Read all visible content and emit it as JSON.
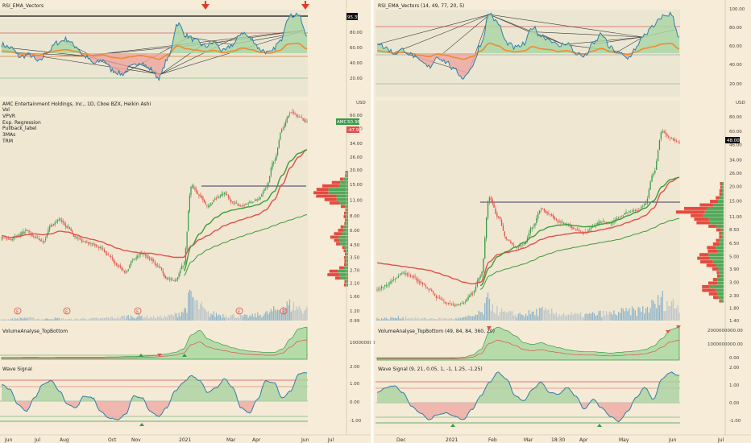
{
  "colors": {
    "background": "#f6ecd7",
    "up": "#3a9a4a",
    "down": "#e0504a",
    "rsi_line": "#2f7fa8",
    "ema_orange": "#f08a30",
    "ema_red": "#e0504a",
    "ma_green": "#3f9a3a",
    "vector_lines": "#3a3a3a",
    "vpvr_up": "#52a85a",
    "vpvr_down": "#e64a3e",
    "vwap_level": "#3a3a68",
    "wave_hi": "#e0504a",
    "wave_lo": "#3a9a4a"
  },
  "left": {
    "rsi": {
      "title": "RSI_EMA_Vectors",
      "scale_labels": [
        "20.00",
        "40.00",
        "60.00",
        "80.00"
      ],
      "value_badge": "95.35"
    },
    "main": {
      "legend": [
        "AMC Entertainment Holdings, Inc., 1D, Cboe BZX, Heikin Ashi",
        "Vol",
        "VPVR",
        "Exp. Regression",
        "Pullback_label",
        "3MAs",
        "TRM"
      ],
      "currency": "USD",
      "price_scale": [
        "0.99",
        "1.20",
        "1.60",
        "2.10",
        "2.70",
        "3.50",
        "4.50",
        "6.00",
        "8.00",
        "11.00",
        "15.00",
        "20.00",
        "26.00",
        "34.00",
        "46.00",
        "60.00",
        "80.00"
      ],
      "price_badge": "50.36",
      "price_badge_tag": "AMC",
      "pct_badge": "-47.91",
      "earnings_marker": "E"
    },
    "volume": {
      "title": "VolumeAnalyse_TopBottom",
      "scale_labels": [
        "100000000.00"
      ]
    },
    "wave": {
      "title": "Wave Signal",
      "scale_labels": [
        "2.00",
        "1.00",
        "0.00",
        "-1.00"
      ]
    },
    "time_axis": [
      "Jun",
      "Jul",
      "Aug",
      "Oct",
      "Nov",
      "2021",
      "Mar",
      "Apr",
      "Jun",
      "Jul"
    ]
  },
  "right": {
    "rsi": {
      "title": "RSI_EMA_Vectors (14, 49, 77, 20, 5)",
      "scale_labels": [
        "20.00",
        "40.00",
        "60.00",
        "80.00",
        "100.00"
      ]
    },
    "main": {
      "currency": "USD",
      "price_scale": [
        "1.40",
        "1.80",
        "2.30",
        "3.00",
        "3.90",
        "5.00",
        "6.50",
        "8.50",
        "11.00",
        "15.00",
        "20.00",
        "26.00",
        "34.00",
        "46.00",
        "60.00",
        "80.00",
        "110.00"
      ],
      "price_badge": "48.00"
    },
    "volume": {
      "title": "VolumeAnalyse_TopBottom (49, 84, 84, 360, 20)",
      "scale_labels": [
        "2000000000.00",
        "1000000000.00",
        "0.00"
      ]
    },
    "wave": {
      "title": "Wave Signal (9, 21, 0.05, 1, -1, 1.25, -1.25)",
      "scale_labels": [
        "2.00",
        "1.00",
        "0.00",
        "-1.00"
      ]
    },
    "time_axis": [
      "Dec",
      "2021",
      "Feb",
      "Mar",
      "18:30",
      "Apr",
      "May",
      "Jun",
      "Jul"
    ]
  },
  "chart_data": [
    {
      "type": "line",
      "title": "RSI_EMA_Vectors",
      "x": [
        "Jun",
        "Jul",
        "Aug",
        "Oct",
        "Nov",
        "2021",
        "Mar",
        "Apr",
        "Jun"
      ],
      "series": [
        {
          "values": [
            58,
            48,
            66,
            42,
            30,
            28,
            82,
            60,
            92
          ]
        }
      ],
      "ylim": [
        0,
        100
      ]
    },
    {
      "type": "line",
      "title": "AMC Entertainment Holdings, Inc., 1D, Cboe BZX, Heikin Ashi",
      "x": [
        "Jun",
        "Jul",
        "Aug",
        "Oct",
        "Nov",
        "2021",
        "Mar",
        "Apr",
        "Jun",
        "Jul"
      ],
      "series": [
        {
          "values": [
            5.2,
            5.0,
            6.2,
            4.6,
            2.8,
            2.1,
            12.5,
            10.2,
            62,
            50.36
          ]
        }
      ],
      "ylim": [
        0.99,
        80
      ]
    },
    {
      "type": "area",
      "title": "VolumeAnalyse_TopBottom",
      "x": [
        "Jun",
        "Jul",
        "Aug",
        "Oct",
        "Nov",
        "2021",
        "Mar",
        "Apr",
        "Jun"
      ],
      "series": [
        {
          "values": [
            2,
            3,
            4,
            5,
            6,
            10,
            85,
            60,
            120
          ]
        }
      ]
    },
    {
      "type": "line",
      "title": "Wave Signal",
      "x": [
        "Jun",
        "Jul",
        "Aug",
        "Oct",
        "Nov",
        "2021",
        "Mar",
        "Apr",
        "Jun"
      ],
      "series": [
        {
          "values": [
            1.0,
            -0.6,
            1.2,
            -1.0,
            -1.1,
            1.1,
            1.5,
            -0.7,
            1.7
          ]
        }
      ],
      "ylim": [
        -1.5,
        2.0
      ]
    }
  ]
}
